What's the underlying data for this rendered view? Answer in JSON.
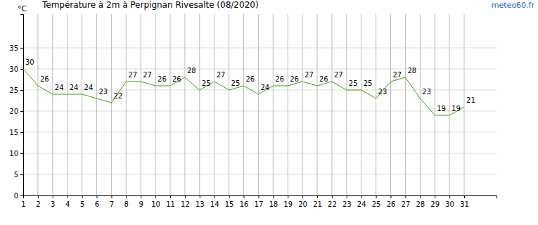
{
  "chart_data": {
    "type": "line",
    "title": "Température à 2m à Perpignan Rivesalte (08/2020)",
    "source": "meteo60.fr",
    "y_label": "°C",
    "x": [
      1,
      2,
      3,
      4,
      5,
      6,
      7,
      8,
      9,
      10,
      11,
      12,
      13,
      14,
      15,
      16,
      17,
      18,
      19,
      20,
      21,
      22,
      23,
      24,
      25,
      26,
      27,
      28,
      29,
      30,
      31
    ],
    "values": [
      30,
      26,
      24,
      24,
      24,
      23,
      22,
      27,
      27,
      26,
      26,
      28,
      25,
      27,
      25,
      26,
      24,
      26,
      26,
      27,
      26,
      27,
      25,
      25,
      23,
      27,
      28,
      23,
      19,
      19,
      21
    ],
    "color": "#33a600",
    "xlim": [
      1,
      33.2
    ],
    "xticks": [
      1,
      2,
      3,
      4,
      5,
      6,
      7,
      8,
      9,
      10,
      11,
      12,
      13,
      14,
      15,
      16,
      17,
      18,
      19,
      20,
      21,
      22,
      23,
      24,
      25,
      26,
      27,
      28,
      29,
      30,
      31
    ],
    "ylim": [
      0,
      43
    ],
    "yticks": [
      0,
      5,
      10,
      15,
      20,
      25,
      30,
      35
    ],
    "grid": true,
    "data_labels": true
  }
}
